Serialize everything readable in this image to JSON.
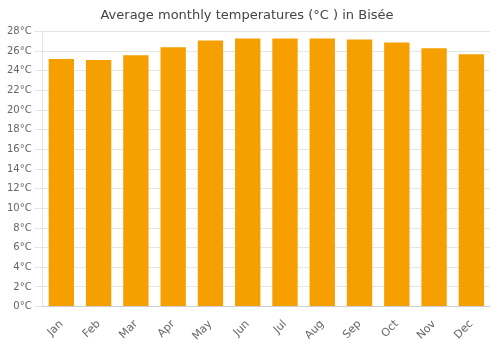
{
  "chart_data": {
    "type": "bar",
    "title": "Average monthly temperatures (°C ) in Bisée",
    "categories": [
      "Jan",
      "Feb",
      "Mar",
      "Apr",
      "May",
      "Jun",
      "Jul",
      "Aug",
      "Sep",
      "Oct",
      "Nov",
      "Dec"
    ],
    "values": [
      25.2,
      25.1,
      25.6,
      26.4,
      27.1,
      27.3,
      27.3,
      27.3,
      27.2,
      26.9,
      26.3,
      25.7
    ],
    "color": "#F5A000",
    "ylim": [
      0,
      28
    ],
    "yticks": [
      {
        "value": 0,
        "label": "0°C"
      },
      {
        "value": 2,
        "label": "2°C"
      },
      {
        "value": 4,
        "label": "4°C"
      },
      {
        "value": 6,
        "label": "6°C"
      },
      {
        "value": 8,
        "label": "8°C"
      },
      {
        "value": 10,
        "label": "10°C"
      },
      {
        "value": 12,
        "label": "12°C"
      },
      {
        "value": 14,
        "label": "14°C"
      },
      {
        "value": 16,
        "label": "16°C"
      },
      {
        "value": 18,
        "label": "18°C"
      },
      {
        "value": 20,
        "label": "20°C"
      },
      {
        "value": 22,
        "label": "22°C"
      },
      {
        "value": 24,
        "label": "24°C"
      },
      {
        "value": 26,
        "label": "26°C"
      },
      {
        "value": 28,
        "label": "28°C"
      }
    ],
    "grid": true
  }
}
